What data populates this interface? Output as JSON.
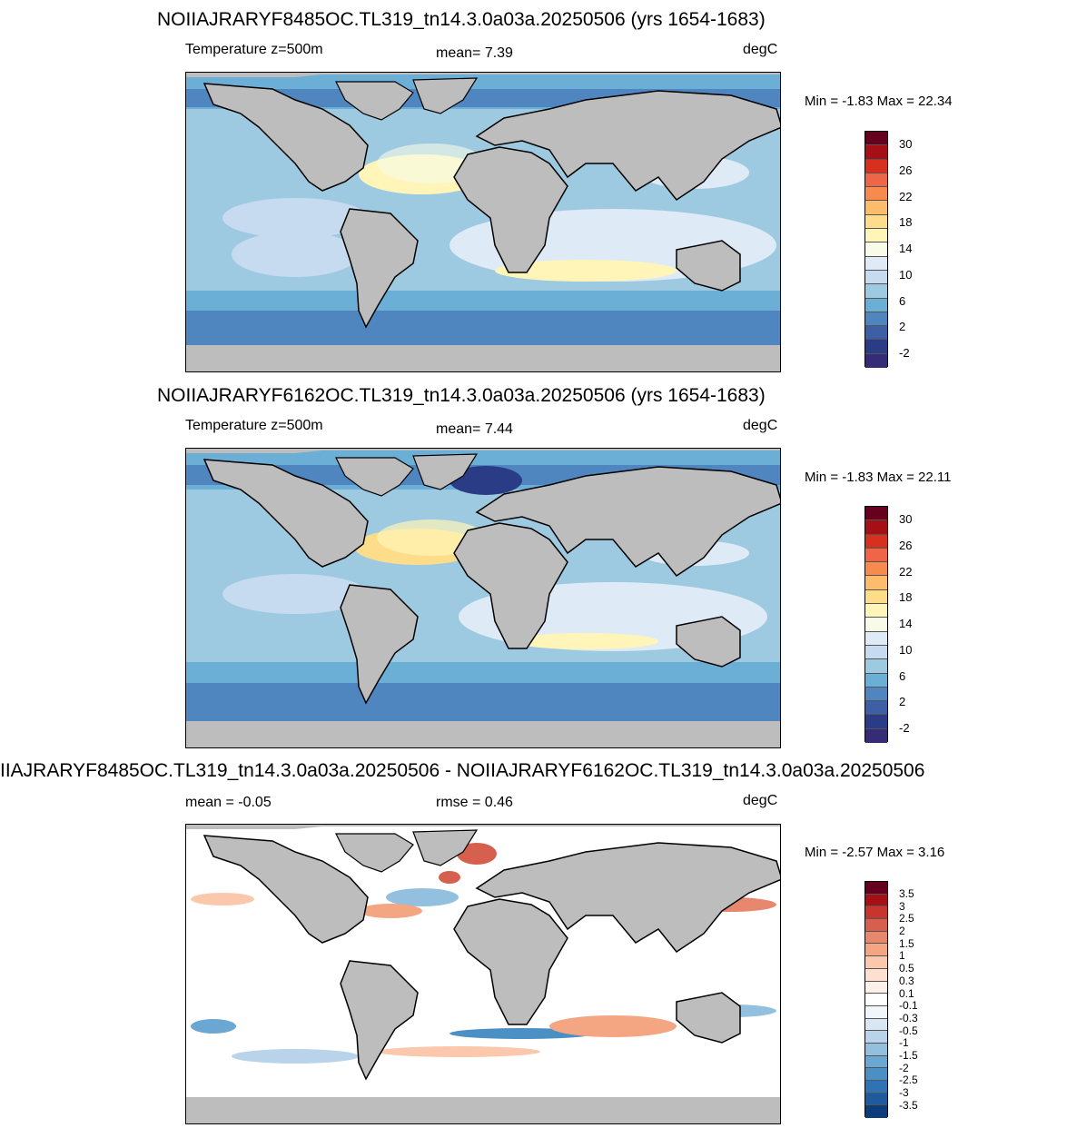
{
  "panels": [
    {
      "title": "NOIIAJRARYF8485OC.TL319_tn14.3.0a03a.20250506 (yrs 1654-1683)",
      "left_label": "Temperature z=500m",
      "center_label": "mean=   7.39",
      "right_label": "degC",
      "minmax": "Min =  -1.83 Max =  22.34",
      "colorbar": {
        "colors": [
          "#67001f",
          "#a50f15",
          "#d7301f",
          "#ef6548",
          "#f68b4d",
          "#fdbb6c",
          "#fddc8a",
          "#fff5b8",
          "#f7fbe8",
          "#deebf7",
          "#c6dbef",
          "#9ecae1",
          "#6baed6",
          "#4f86c0",
          "#3c5fa6",
          "#2b3c86",
          "#352c77"
        ],
        "labels": [
          "30",
          "26",
          "22",
          "18",
          "14",
          "10",
          "6",
          "2",
          "-2"
        ]
      }
    },
    {
      "title": "NOIIAJRARYF6162OC.TL319_tn14.3.0a03a.20250506 (yrs 1654-1683)",
      "left_label": "Temperature z=500m",
      "center_label": "mean=   7.44",
      "right_label": "degC",
      "minmax": "Min =  -1.83 Max =  22.11",
      "colorbar": {
        "colors": [
          "#67001f",
          "#a50f15",
          "#d7301f",
          "#ef6548",
          "#f68b4d",
          "#fdbb6c",
          "#fddc8a",
          "#fff5b8",
          "#f7fbe8",
          "#deebf7",
          "#c6dbef",
          "#9ecae1",
          "#6baed6",
          "#4f86c0",
          "#3c5fa6",
          "#2b3c86",
          "#352c77"
        ],
        "labels": [
          "30",
          "26",
          "22",
          "18",
          "14",
          "10",
          "6",
          "2",
          "-2"
        ]
      }
    },
    {
      "title": "IIAJRARYF8485OC.TL319_tn14.3.0a03a.20250506 - NOIIAJRARYF6162OC.TL319_tn14.3.0a03a.20250506",
      "left_label": "mean =  -0.05",
      "center_label": "rmse =   0.46",
      "right_label": "degC",
      "minmax": "Min =  -2.57 Max =   3.16",
      "colorbar": {
        "colors": [
          "#67001f",
          "#a50f15",
          "#c9352c",
          "#d6604d",
          "#e7876d",
          "#f4a582",
          "#fbc8ad",
          "#fde0d0",
          "#fdf0e8",
          "#ffffff",
          "#f1f6fb",
          "#d9e7f3",
          "#b8d3ea",
          "#93c0df",
          "#6aa7d2",
          "#4a90c4",
          "#2e74b4",
          "#1f5a9e",
          "#0b3d7a"
        ],
        "labels": [
          "3.5",
          "3",
          "2.5",
          "2",
          "1.5",
          "1",
          "0.5",
          "0.3",
          "0.1",
          "-0.1",
          "-0.3",
          "-0.5",
          "-1",
          "-1.5",
          "-2",
          "-2.5",
          "-3",
          "-3.5"
        ]
      }
    }
  ]
}
